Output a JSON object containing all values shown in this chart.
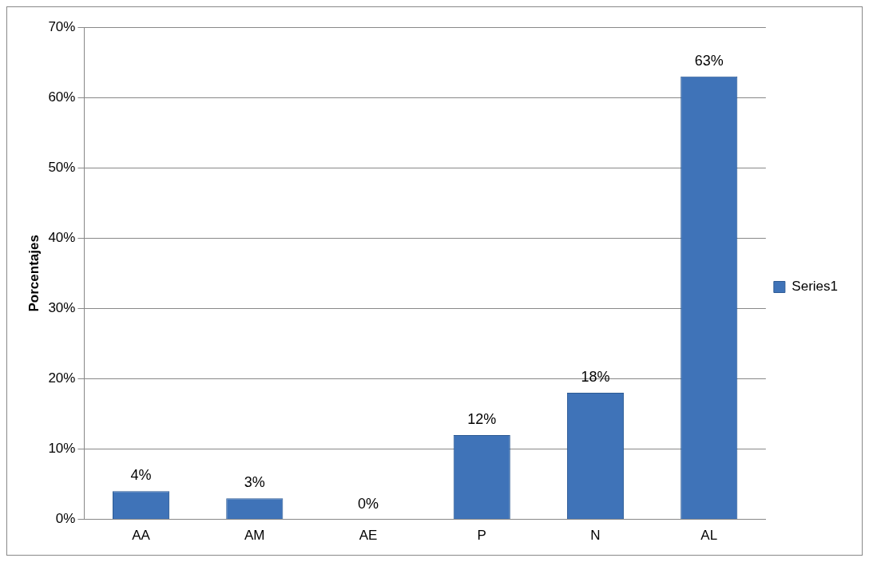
{
  "chart_data": {
    "type": "bar",
    "ylabel": "Porcentajes",
    "categories": [
      "AA",
      "AM",
      "AE",
      "P",
      "N",
      "AL"
    ],
    "series": [
      {
        "name": "Series1",
        "color": "#3f73b8",
        "values": [
          4,
          3,
          0,
          12,
          18,
          63
        ],
        "value_labels": [
          "4%",
          "3%",
          "0%",
          "12%",
          "18%",
          "63%"
        ]
      }
    ],
    "ylim": [
      0,
      70
    ],
    "yticks": [
      {
        "value": 0,
        "label": "0%"
      },
      {
        "value": 10,
        "label": "10%"
      },
      {
        "value": 20,
        "label": "20%"
      },
      {
        "value": 30,
        "label": "30%"
      },
      {
        "value": 40,
        "label": "40%"
      },
      {
        "value": 50,
        "label": "50%"
      },
      {
        "value": 60,
        "label": "60%"
      },
      {
        "value": 70,
        "label": "70%"
      }
    ],
    "grid": "y",
    "legend": "right"
  }
}
